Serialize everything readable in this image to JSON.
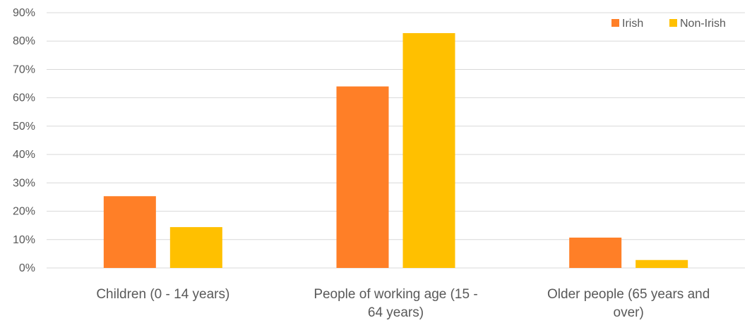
{
  "chart_data": {
    "type": "bar",
    "categories": [
      [
        "Children (0 - 14 years)"
      ],
      [
        "People of working age (15 -",
        "64 years)"
      ],
      [
        "Older people (65 years and",
        "over)"
      ]
    ],
    "series": [
      {
        "name": "Irish",
        "color": "#FF7F27",
        "values": [
          25.3,
          64.0,
          10.7
        ]
      },
      {
        "name": "Non-Irish",
        "color": "#FFC000",
        "values": [
          14.4,
          82.8,
          2.8
        ]
      }
    ],
    "ylim": [
      0,
      90
    ],
    "yticks": [
      0,
      10,
      20,
      30,
      40,
      50,
      60,
      70,
      80,
      90
    ],
    "ytick_labels": [
      "0%",
      "10%",
      "20%",
      "30%",
      "40%",
      "50%",
      "60%",
      "70%",
      "80%",
      "90%"
    ],
    "grid": true,
    "legend_position": "top-right",
    "gridline_color": "#D9D9D9"
  }
}
